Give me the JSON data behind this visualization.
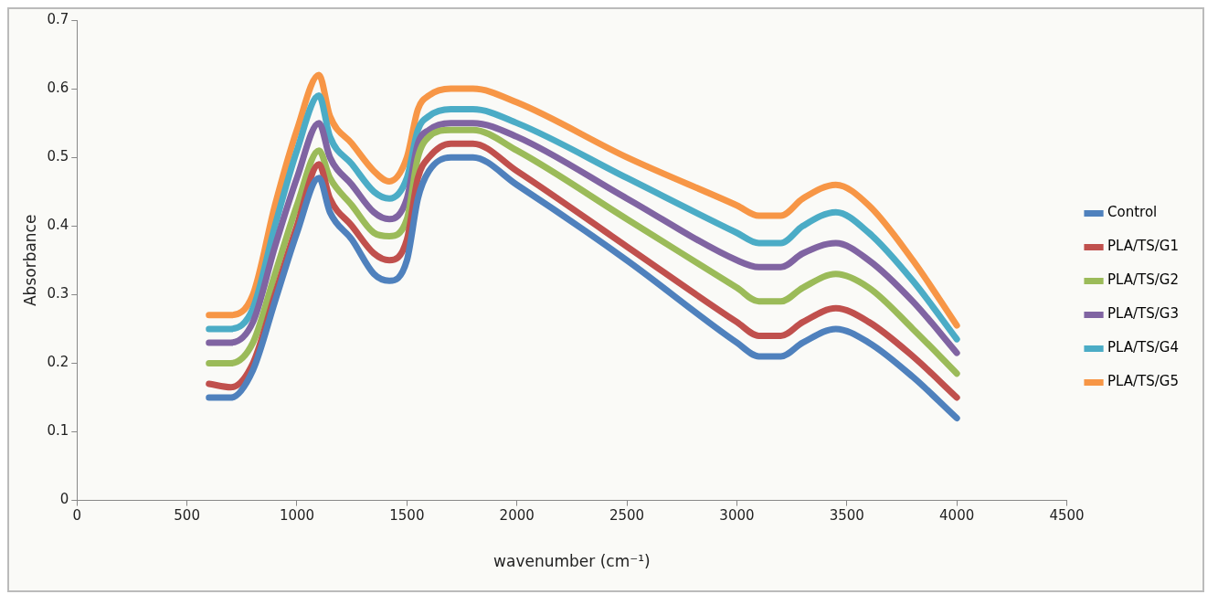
{
  "chart_data": {
    "type": "line",
    "xlabel": "wavenumber (cm⁻¹)",
    "ylabel": "Absorbance",
    "x": [
      600,
      700,
      800,
      900,
      1000,
      1100,
      1150,
      1250,
      1350,
      1420,
      1500,
      1550,
      1600,
      1700,
      1800,
      2000,
      2500,
      3000,
      3100,
      3200,
      3300,
      3450,
      3600,
      3800,
      4000
    ],
    "series": [
      {
        "name": "Control",
        "color": "#4f81bd",
        "values": [
          0.15,
          0.15,
          0.19,
          0.29,
          0.39,
          0.47,
          0.42,
          0.38,
          0.33,
          0.32,
          0.35,
          0.44,
          0.48,
          0.5,
          0.5,
          0.46,
          0.35,
          0.23,
          0.21,
          0.21,
          0.23,
          0.25,
          0.23,
          0.18,
          0.12
        ]
      },
      {
        "name": "PLA/TS/G1",
        "color": "#c0504d",
        "values": [
          0.17,
          0.165,
          0.2,
          0.3,
          0.4,
          0.49,
          0.44,
          0.4,
          0.36,
          0.35,
          0.38,
          0.47,
          0.5,
          0.52,
          0.52,
          0.48,
          0.37,
          0.26,
          0.24,
          0.24,
          0.26,
          0.28,
          0.26,
          0.21,
          0.15
        ]
      },
      {
        "name": "PLA/TS/G2",
        "color": "#9bbb59",
        "values": [
          0.2,
          0.2,
          0.23,
          0.33,
          0.43,
          0.51,
          0.47,
          0.43,
          0.39,
          0.385,
          0.41,
          0.5,
          0.53,
          0.54,
          0.54,
          0.51,
          0.41,
          0.31,
          0.29,
          0.29,
          0.31,
          0.33,
          0.31,
          0.25,
          0.185
        ]
      },
      {
        "name": "PLA/TS/G3",
        "color": "#8064a2",
        "values": [
          0.23,
          0.23,
          0.26,
          0.37,
          0.47,
          0.55,
          0.5,
          0.46,
          0.42,
          0.41,
          0.44,
          0.52,
          0.54,
          0.55,
          0.55,
          0.53,
          0.44,
          0.35,
          0.34,
          0.34,
          0.36,
          0.375,
          0.35,
          0.29,
          0.215
        ]
      },
      {
        "name": "PLA/TS/G4",
        "color": "#4bacc6",
        "values": [
          0.25,
          0.25,
          0.28,
          0.4,
          0.51,
          0.59,
          0.53,
          0.49,
          0.45,
          0.44,
          0.47,
          0.54,
          0.56,
          0.57,
          0.57,
          0.55,
          0.47,
          0.39,
          0.375,
          0.375,
          0.4,
          0.42,
          0.39,
          0.32,
          0.235
        ]
      },
      {
        "name": "PLA/TS/G5",
        "color": "#f79646",
        "values": [
          0.27,
          0.27,
          0.3,
          0.43,
          0.54,
          0.62,
          0.56,
          0.52,
          0.48,
          0.465,
          0.5,
          0.57,
          0.59,
          0.6,
          0.6,
          0.58,
          0.5,
          0.43,
          0.415,
          0.415,
          0.44,
          0.46,
          0.43,
          0.35,
          0.255
        ]
      }
    ],
    "xlim": [
      0,
      4500
    ],
    "xticks": [
      0,
      500,
      1000,
      1500,
      2000,
      2500,
      3000,
      3500,
      4000,
      4500
    ],
    "ylim": [
      0,
      0.7
    ],
    "yticks": [
      0,
      0.1,
      0.2,
      0.3,
      0.4,
      0.5,
      0.6,
      0.7
    ],
    "grid": false,
    "legend": "right",
    "marker": "none",
    "line_style": "solid"
  }
}
